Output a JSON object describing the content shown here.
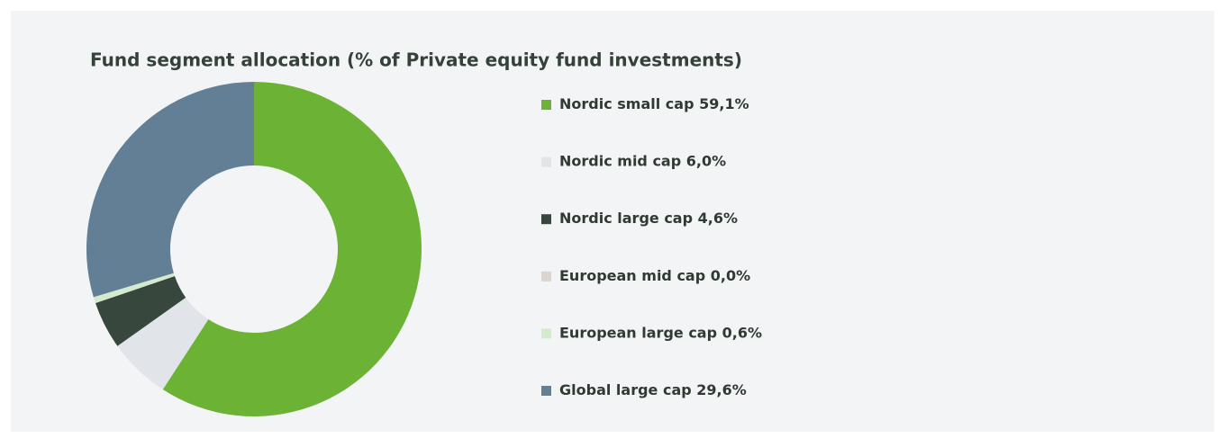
{
  "chart_data": {
    "type": "donut",
    "title": "Fund segment allocation (% of Private equity fund investments)",
    "categories": [
      "Nordic small cap",
      "Nordic mid cap",
      "Nordic large cap",
      "European mid cap",
      "European large cap",
      "Global large cap"
    ],
    "values": [
      59.1,
      6.0,
      4.6,
      0.0,
      0.6,
      29.6
    ],
    "value_labels": [
      "59,1%",
      "6,0%",
      "4,6%",
      "0,0%",
      "0,6%",
      "29,6%"
    ],
    "colors": [
      "#6cb234",
      "#e1e4e8",
      "#38473e",
      "#ddd4cf",
      "#d3ebcd",
      "#627f96"
    ],
    "legend": "right"
  }
}
